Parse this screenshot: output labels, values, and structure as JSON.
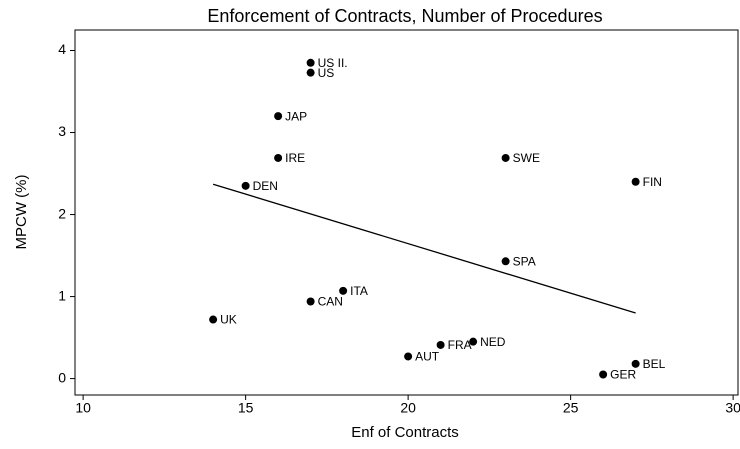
{
  "chart_data": {
    "type": "scatter",
    "title": "Enforcement of Contracts, Number of Procedures",
    "x_label": "Enf of Contracts",
    "y_label": "MPCW (%)",
    "labels": [
      "US II.",
      "US",
      "JAP",
      "IRE",
      "DEN",
      "SWE",
      "FIN",
      "SPA",
      "ITA",
      "CAN",
      "UK",
      "NED",
      "FRA",
      "AUT",
      "BEL",
      "GER"
    ],
    "x": [
      17,
      17,
      16,
      16,
      15,
      23,
      27,
      23,
      18,
      17,
      14,
      22,
      21,
      20,
      27,
      26
    ],
    "y": [
      3.85,
      3.73,
      3.2,
      2.69,
      2.35,
      2.69,
      2.4,
      1.43,
      1.07,
      0.94,
      0.72,
      0.45,
      0.41,
      0.27,
      0.18,
      0.05
    ],
    "color": "#000000",
    "fit_line": {
      "x": [
        14,
        27
      ],
      "y": [
        2.37,
        0.8
      ]
    },
    "xlim": [
      9.75,
      30.15
    ],
    "ylim": [
      -0.2,
      4.25
    ],
    "xticks": [
      10,
      15,
      20,
      25,
      30
    ],
    "yticks": [
      0,
      1,
      2,
      3,
      4
    ]
  }
}
